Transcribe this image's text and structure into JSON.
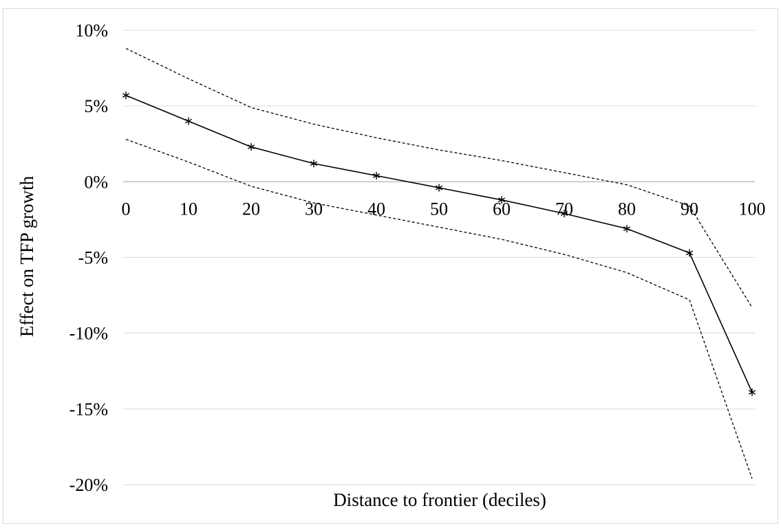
{
  "chart_data": {
    "type": "line",
    "title": "",
    "xlabel": "Distance to frontier (deciles)",
    "ylabel": "Effect on TFP growth",
    "x": [
      0,
      10,
      20,
      30,
      40,
      50,
      60,
      70,
      80,
      90,
      100
    ],
    "x_tick_labels": [
      "0",
      "10",
      "20",
      "30",
      "40",
      "50",
      "60",
      "70",
      "80",
      "90",
      "100"
    ],
    "y_tick_values": [
      10,
      5,
      0,
      -5,
      -10,
      -15,
      -20
    ],
    "y_tick_labels": [
      "10%",
      "5%",
      "0%",
      "-5%",
      "-10%",
      "-15%",
      "-20%"
    ],
    "ylim": [
      -20,
      10
    ],
    "y_unit": "%",
    "grid": "horizontal",
    "legend": "none",
    "series": [
      {
        "role": "estimate",
        "style": "solid",
        "marker": "asterisk",
        "color": "#000000",
        "values": [
          5.7,
          4.0,
          2.3,
          1.2,
          0.4,
          -0.4,
          -1.2,
          -2.1,
          -3.1,
          -4.7,
          -13.9
        ]
      },
      {
        "role": "upper-bound",
        "style": "dashed",
        "marker": "none",
        "color": "#000000",
        "values": [
          8.8,
          6.8,
          4.9,
          3.8,
          2.9,
          2.1,
          1.4,
          0.6,
          -0.2,
          -1.6,
          -8.3
        ]
      },
      {
        "role": "lower-bound",
        "style": "dashed",
        "marker": "none",
        "color": "#000000",
        "values": [
          2.8,
          1.3,
          -0.3,
          -1.4,
          -2.2,
          -3.0,
          -3.8,
          -4.8,
          -6.0,
          -7.8,
          -19.6
        ]
      }
    ]
  }
}
